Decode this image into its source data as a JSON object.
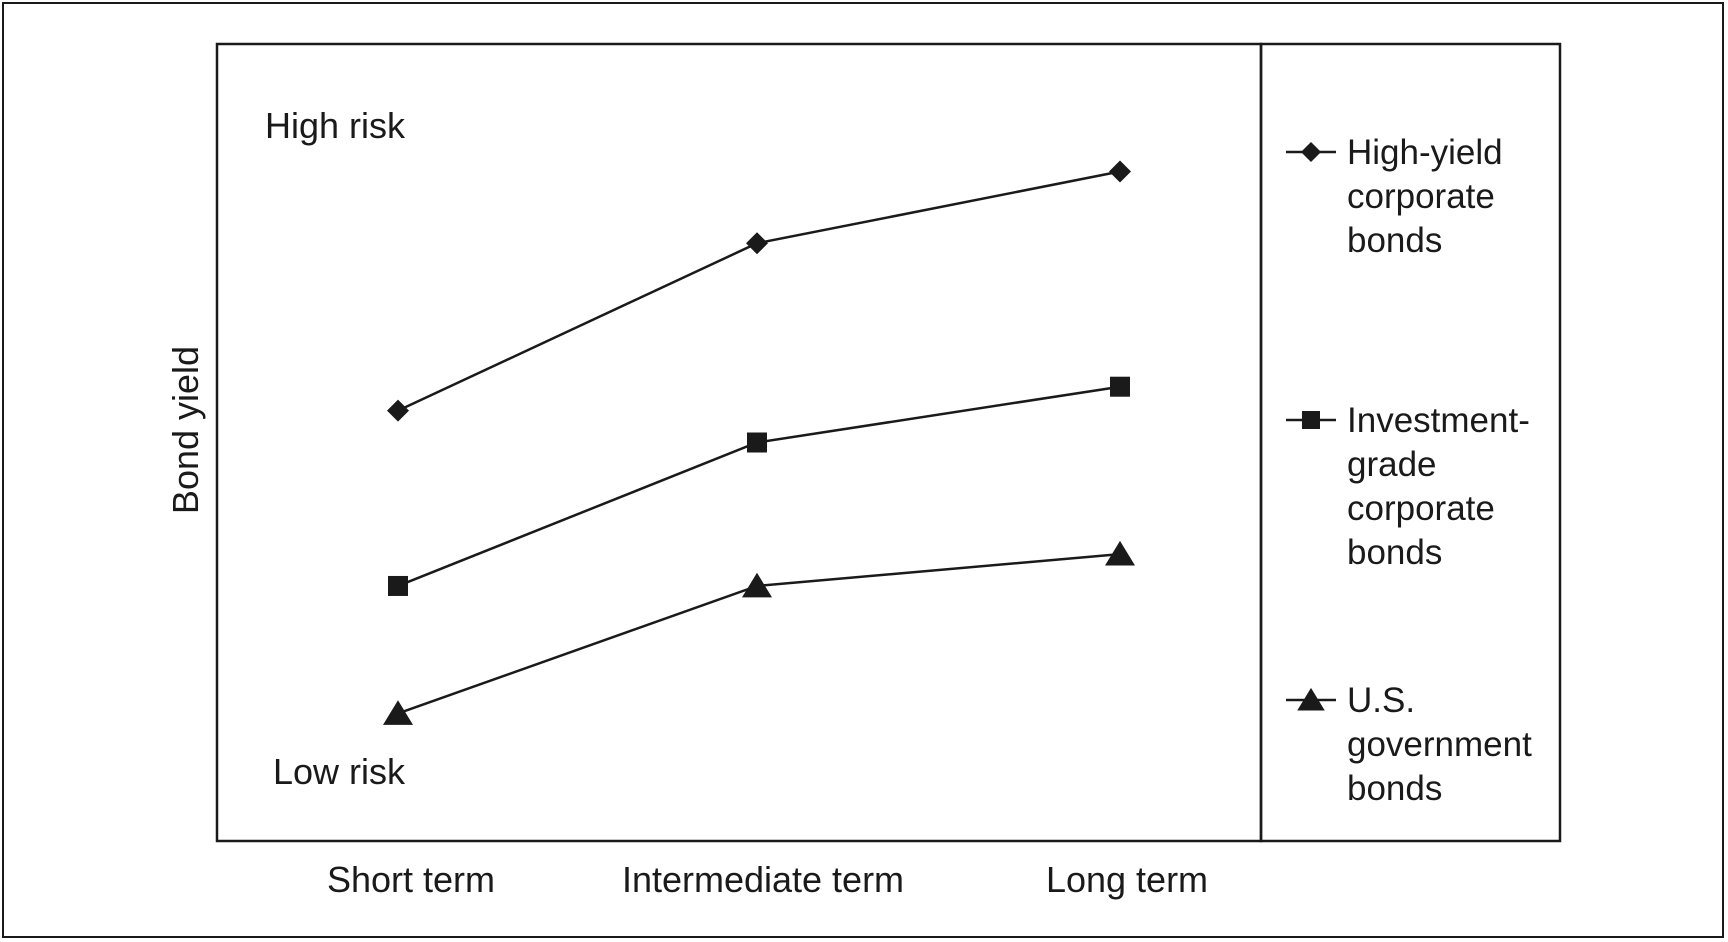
{
  "chart_data": {
    "type": "line",
    "title": "",
    "xlabel": "",
    "ylabel": "Bond yield",
    "categories": [
      "Short term",
      "Intermediate term",
      "Long term"
    ],
    "ylim": [
      0,
      10
    ],
    "grid": false,
    "legend_position": "right",
    "annotations": {
      "top": "High risk",
      "bottom": "Low risk"
    },
    "series": [
      {
        "name": "High-yield corporate bonds",
        "marker": "diamond",
        "values": [
          5.4,
          7.5,
          8.4
        ]
      },
      {
        "name": "Investment-grade corporate bonds",
        "marker": "square",
        "values": [
          3.2,
          5.0,
          5.7
        ]
      },
      {
        "name": "U.S. government bonds",
        "marker": "triangle",
        "values": [
          1.6,
          3.2,
          3.6
        ]
      }
    ],
    "legend_lines": [
      [
        "High-yield",
        "corporate",
        "bonds"
      ],
      [
        "Investment-",
        "grade",
        "corporate",
        "bonds"
      ],
      [
        "U.S.",
        "government",
        "bonds"
      ]
    ],
    "colors": {
      "line": "#1a1a1a",
      "marker": "#1a1a1a",
      "background": "#ffffff"
    }
  }
}
